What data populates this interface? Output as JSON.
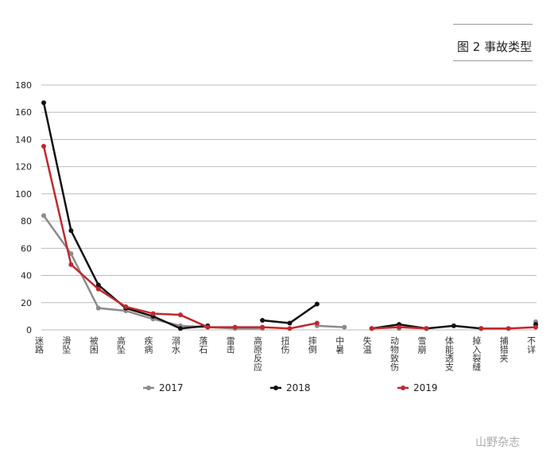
{
  "figure_title": "图 2 事故类型",
  "watermark": "山野杂志",
  "chart_data": {
    "type": "line",
    "title": "图 2 事故类型",
    "xlabel": "",
    "ylabel": "",
    "ylim": [
      0,
      180
    ],
    "yticks": [
      0,
      20,
      40,
      60,
      80,
      100,
      120,
      140,
      160,
      180
    ],
    "grid": true,
    "legend_position": "bottom",
    "categories": [
      "迷路",
      "滑坠",
      "被困",
      "高坠",
      "疾病",
      "溺水",
      "落石",
      "雷击",
      "高原反应",
      "扭伤",
      "摔倒",
      "中暑",
      "失温",
      "动物致伤",
      "雪崩",
      "体能透支",
      "掉入裂缝",
      "捕猎夹",
      "不详"
    ],
    "series": [
      {
        "name": "2017",
        "color": "#8c8c8c",
        "values": [
          84,
          56,
          16,
          14,
          8,
          3,
          2,
          1,
          1,
          null,
          3,
          2,
          null,
          1,
          null,
          null,
          null,
          null,
          6
        ]
      },
      {
        "name": "2018",
        "color": "#111111",
        "values": [
          167,
          73,
          33,
          16,
          10,
          1,
          3,
          null,
          7,
          5,
          19,
          null,
          1,
          4,
          1,
          3,
          1,
          null,
          4
        ]
      },
      {
        "name": "2019",
        "color": "#c0282d",
        "values": [
          135,
          48,
          30,
          17,
          12,
          11,
          2,
          2,
          2,
          1,
          5,
          null,
          1,
          2,
          1,
          null,
          1,
          1,
          2
        ]
      }
    ]
  }
}
